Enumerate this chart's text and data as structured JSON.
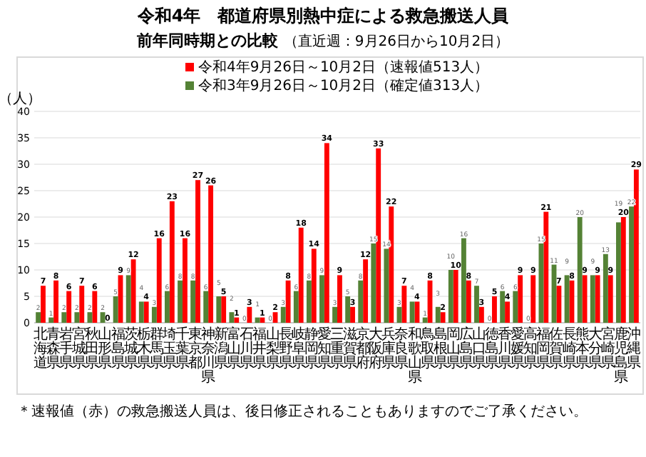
{
  "chart_data": {
    "type": "bar",
    "title": "令和4年　都道府県別熱中症による救急搬送人員",
    "subtitle": "前年同時期との比較",
    "ylabel": "（人）",
    "annotations": [
      "（直近週：9月26日から10月2日）",
      "＊速報値（赤）の救急搬送人員は、後日修正されることもありますのでご了承ください。"
    ],
    "categories": [
      "北海道",
      "青森県",
      "岩手県",
      "宮城県",
      "秋田県",
      "山形県",
      "福島県",
      "茨城県",
      "栃木県",
      "群馬県",
      "埼玉県",
      "千葉県",
      "東京都",
      "神奈川県",
      "新潟県",
      "富山県",
      "石川県",
      "福井県",
      "山梨県",
      "長野県",
      "岐阜県",
      "静岡県",
      "愛知県",
      "三重県",
      "滋賀県",
      "京都府",
      "大阪府",
      "兵庫県",
      "奈良県",
      "和歌山県",
      "鳥取県",
      "島根県",
      "岡山県",
      "広島県",
      "山口県",
      "徳島県",
      "香川県",
      "愛媛県",
      "高知県",
      "福岡県",
      "佐賀県",
      "長崎県",
      "熊本県",
      "大分県",
      "宮崎県",
      "鹿児島県",
      "沖縄県"
    ],
    "series": [
      {
        "name": "令和4年9月26日～10月2日（速報値513人）",
        "color": "#ff0000",
        "values": [
          7,
          8,
          6,
          7,
          6,
          0,
          9,
          12,
          4,
          16,
          23,
          16,
          27,
          26,
          5,
          1,
          3,
          1,
          2,
          8,
          18,
          14,
          34,
          9,
          3,
          12,
          33,
          22,
          7,
          4,
          8,
          2,
          10,
          8,
          3,
          5,
          4,
          9,
          9,
          21,
          7,
          8,
          9,
          9,
          9,
          20,
          29
        ]
      },
      {
        "name": "令和3年9月26日～10月2日（確定値313人）",
        "color": "#548235",
        "values": [
          2,
          1,
          2,
          2,
          2,
          2,
          5,
          9,
          4,
          3,
          6,
          8,
          8,
          6,
          5,
          2,
          0,
          1,
          0,
          3,
          6,
          8,
          9,
          3,
          5,
          8,
          15,
          14,
          3,
          4,
          1,
          3,
          10,
          16,
          7,
          0,
          6,
          6,
          0,
          15,
          11,
          9,
          20,
          9,
          13,
          19,
          22
        ]
      }
    ],
    "ylim": [
      0,
      40
    ],
    "yticks": [
      0,
      5,
      10,
      15,
      20,
      25,
      30,
      35,
      40
    ],
    "grid": "y",
    "legend": "top",
    "data_labels": true
  }
}
